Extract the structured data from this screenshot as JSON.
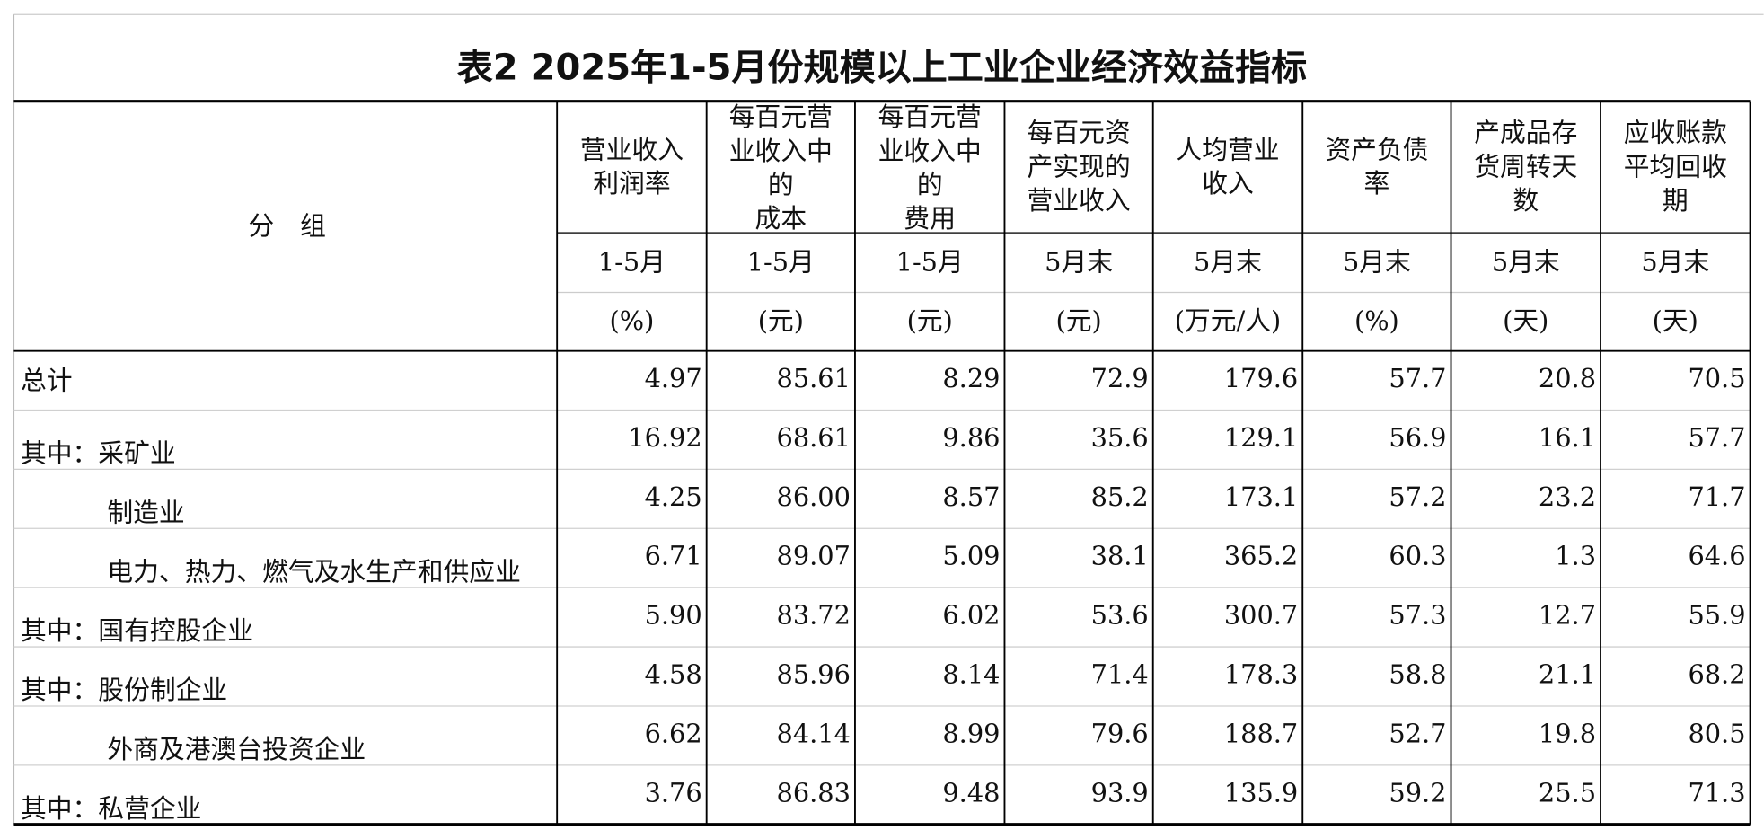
{
  "header": {
    "title": "表2 2025年1-5月份规模以上工业企业经济效益指标"
  },
  "table": {
    "group_label": "分　组",
    "columns": [
      {
        "name": [
          "营业收入",
          "利润率"
        ],
        "period": "1-5月",
        "unit": "(%)"
      },
      {
        "name": [
          "每百元营",
          "业收入中",
          "的",
          "成本"
        ],
        "period": "1-5月",
        "unit": "(元)"
      },
      {
        "name": [
          "每百元营",
          "业收入中",
          "的",
          "费用"
        ],
        "period": "1-5月",
        "unit": "(元)"
      },
      {
        "name": [
          "每百元资",
          "产实现的",
          "营业收入"
        ],
        "period": "5月末",
        "unit": "(元)"
      },
      {
        "name": [
          "人均营业",
          "收入"
        ],
        "period": "5月末",
        "unit": "(万元/人)"
      },
      {
        "name": [
          "资产负债",
          "率"
        ],
        "period": "5月末",
        "unit": "(%)"
      },
      {
        "name": [
          "产成品存",
          "货周转天",
          "数"
        ],
        "period": "5月末",
        "unit": "(天)"
      },
      {
        "name": [
          "应收账款",
          "平均回收",
          "期"
        ],
        "period": "5月末",
        "unit": "(天)"
      }
    ],
    "rows": [
      {
        "label": "总计",
        "level": 0,
        "values": [
          "4.97",
          "85.61",
          "8.29",
          "72.9",
          "179.6",
          "57.7",
          "20.8",
          "70.5"
        ]
      },
      {
        "label": "其中：采矿业",
        "level": 0,
        "values": [
          "16.92",
          "68.61",
          "9.86",
          "35.6",
          "129.1",
          "56.9",
          "16.1",
          "57.7"
        ]
      },
      {
        "label": "制造业",
        "level": 1,
        "values": [
          "4.25",
          "86.00",
          "8.57",
          "85.2",
          "173.1",
          "57.2",
          "23.2",
          "71.7"
        ]
      },
      {
        "label": "电力、热力、燃气及水生产和供应业",
        "level": 1,
        "values": [
          "6.71",
          "89.07",
          "5.09",
          "38.1",
          "365.2",
          "60.3",
          "1.3",
          "64.6"
        ]
      },
      {
        "label": "其中：国有控股企业",
        "level": 0,
        "values": [
          "5.90",
          "83.72",
          "6.02",
          "53.6",
          "300.7",
          "57.3",
          "12.7",
          "55.9"
        ]
      },
      {
        "label": "其中：股份制企业",
        "level": 0,
        "values": [
          "4.58",
          "85.96",
          "8.14",
          "71.4",
          "178.3",
          "58.8",
          "21.1",
          "68.2"
        ]
      },
      {
        "label": "外商及港澳台投资企业",
        "level": 1,
        "values": [
          "6.62",
          "84.14",
          "8.99",
          "79.6",
          "188.7",
          "52.7",
          "19.8",
          "80.5"
        ]
      },
      {
        "label": "其中：私营企业",
        "level": 0,
        "values": [
          "3.76",
          "86.83",
          "9.48",
          "93.9",
          "135.9",
          "59.2",
          "25.5",
          "71.3"
        ]
      }
    ]
  }
}
